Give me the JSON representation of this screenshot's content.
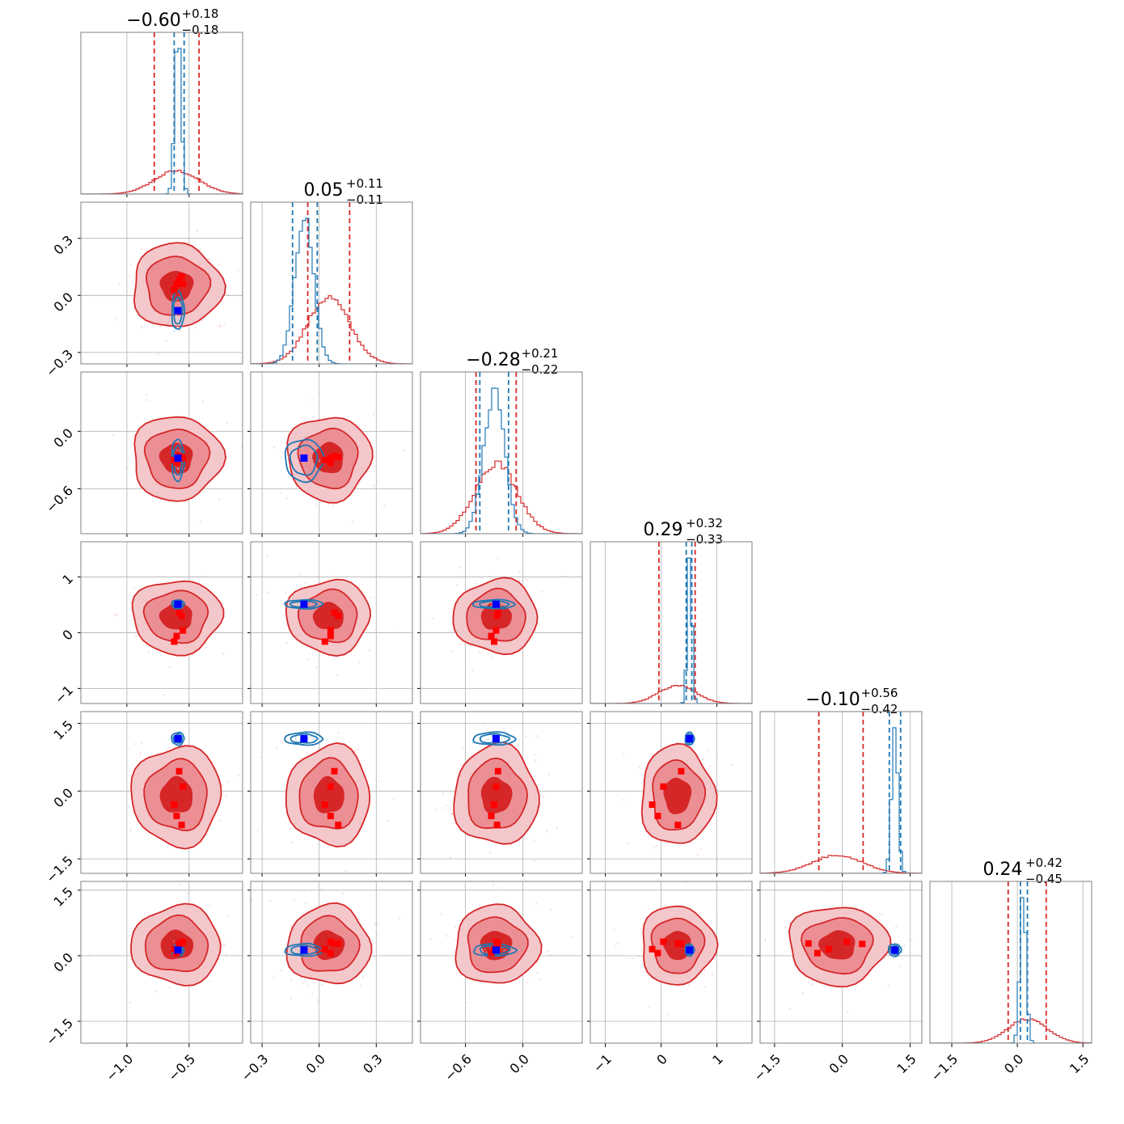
{
  "chart_data": {
    "type": "corner",
    "n_params": 6,
    "panel_grid": "lower-triangle",
    "axis_ticks": [
      {
        "ticks": [
          -1.0,
          -0.5
        ],
        "labels": [
          "−1.0",
          "−0.5"
        ],
        "range": [
          -1.37,
          -0.07
        ]
      },
      {
        "ticks": [
          -0.3,
          0.0,
          0.3
        ],
        "labels": [
          "−0.3",
          "0.0",
          "0.3"
        ],
        "range": [
          -0.36,
          0.49
        ]
      },
      {
        "ticks": [
          -0.6,
          0.0
        ],
        "labels": [
          "−0.6",
          "0.0"
        ],
        "range": [
          -1.07,
          0.62
        ]
      },
      {
        "ticks": [
          -1,
          0,
          1
        ],
        "labels": [
          "−1",
          "0",
          "1"
        ],
        "range": [
          -1.27,
          1.63
        ]
      },
      {
        "ticks": [
          -1.5,
          0.0,
          1.5
        ],
        "labels": [
          "−1.5",
          "0.0",
          "1.5"
        ],
        "range": [
          -1.82,
          1.76
        ]
      },
      {
        "ticks": [
          -1.5,
          0.0,
          1.5
        ],
        "labels": [
          "−1.5",
          "0.0",
          "1.5"
        ],
        "range": [
          -2.0,
          1.7
        ]
      }
    ],
    "titles": [
      {
        "value": "−0.60",
        "plus": "+0.18",
        "minus": "−0.18"
      },
      {
        "value": "0.05",
        "plus": "+0.11",
        "minus": "−0.11"
      },
      {
        "value": "−0.28",
        "plus": "+0.21",
        "minus": "−0.22"
      },
      {
        "value": "0.29",
        "plus": "+0.32",
        "minus": "−0.33"
      },
      {
        "value": "−0.10",
        "plus": "+0.56",
        "minus": "−0.42"
      },
      {
        "value": "0.24",
        "plus": "+0.42",
        "minus": "−0.45"
      }
    ],
    "series": [
      {
        "color": "#d62728",
        "means": [
          -0.6,
          0.05,
          -0.28,
          0.29,
          -0.1,
          0.24
        ],
        "sds": [
          0.18,
          0.11,
          0.22,
          0.33,
          0.55,
          0.45
        ],
        "quantile_lines": [
          [
            -0.78,
            -0.42
          ],
          [
            -0.06,
            0.16
          ],
          [
            -0.49,
            -0.07
          ],
          [
            -0.04,
            0.61
          ],
          [
            -0.52,
            0.46
          ],
          [
            -0.21,
            0.66
          ]
        ],
        "filled_contours": true
      },
      {
        "color": "#1f77b4",
        "means": [
          -0.59,
          -0.08,
          -0.3,
          0.51,
          1.16,
          0.13
        ],
        "sds": [
          0.025,
          0.05,
          0.11,
          0.04,
          0.07,
          0.07
        ],
        "quantile_lines": [
          [
            -0.62,
            -0.54
          ],
          [
            -0.14,
            -0.01
          ],
          [
            -0.45,
            -0.15
          ],
          [
            0.45,
            0.55
          ],
          [
            1.04,
            1.29
          ],
          [
            0.07,
            0.23
          ]
        ],
        "filled_contours": false
      }
    ],
    "truth_markers": [
      {
        "color": "#0000ff",
        "values": [
          -0.59,
          -0.08,
          -0.28,
          0.51,
          1.16,
          0.13
        ]
      },
      {
        "color": "#ff0000",
        "values": [
          [
            -0.58,
            -0.55,
            -0.62,
            -0.56,
            -0.6
          ],
          [
            0.08,
            0.06,
            0.03,
            0.1,
            0.06
          ],
          [
            -0.26,
            -0.28,
            -0.3,
            -0.27,
            -0.33
          ],
          [
            0.36,
            0.04,
            -0.16,
            0.3,
            -0.06
          ],
          [
            0.44,
            0.1,
            -0.3,
            -0.75,
            -0.55
          ],
          [
            0.27,
            0.32,
            0.15,
            0.28,
            0.06
          ]
        ]
      }
    ],
    "grid": true
  }
}
